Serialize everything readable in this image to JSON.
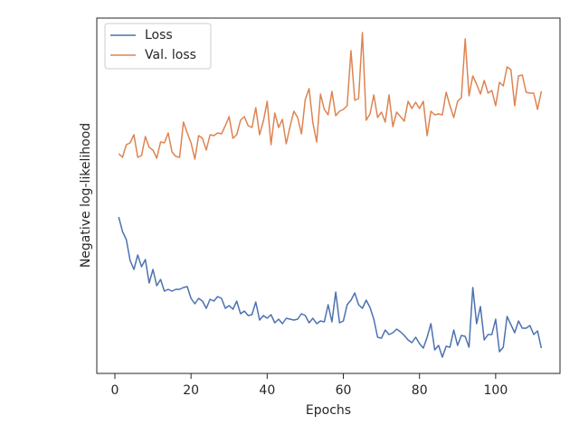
{
  "chart_data": {
    "type": "line",
    "xlabel": "Epochs",
    "ylabel": "Negative log-likelihood",
    "x": [
      1,
      2,
      3,
      4,
      5,
      6,
      7,
      8,
      9,
      10,
      11,
      12,
      13,
      14,
      15,
      16,
      17,
      18,
      19,
      20,
      21,
      22,
      23,
      24,
      25,
      26,
      27,
      28,
      29,
      30,
      31,
      32,
      33,
      34,
      35,
      36,
      37,
      38,
      39,
      40,
      41,
      42,
      43,
      44,
      45,
      46,
      47,
      48,
      49,
      50,
      51,
      52,
      53,
      54,
      55,
      56,
      57,
      58,
      59,
      60,
      61,
      62,
      63,
      64,
      65,
      66,
      67,
      68,
      69,
      70,
      71,
      72,
      73,
      74,
      75,
      76,
      77,
      78,
      79,
      80,
      81,
      82,
      83,
      84,
      85,
      86,
      87,
      88,
      89,
      90,
      91,
      92,
      93,
      94,
      95,
      96,
      97,
      98,
      99,
      100,
      101,
      102,
      103,
      104,
      105,
      106,
      107,
      108,
      109,
      110,
      111,
      112
    ],
    "series": [
      {
        "name": "Loss",
        "color": "#4c72b0",
        "values": [
          173,
          157,
          148,
          125,
          115,
          131,
          118,
          126,
          100,
          115,
          97,
          104,
          91,
          93,
          91,
          93,
          93,
          95,
          96,
          83,
          77,
          83,
          80,
          72,
          82,
          80,
          85,
          83,
          72,
          75,
          71,
          80,
          66,
          69,
          64,
          65,
          79,
          59,
          64,
          61,
          65,
          56,
          60,
          55,
          61,
          60,
          59,
          60,
          66,
          64,
          56,
          61,
          55,
          58,
          57,
          76,
          57,
          90,
          56,
          58,
          76,
          81,
          89,
          76,
          72,
          81,
          73,
          60,
          40,
          39,
          48,
          43,
          45,
          49,
          46,
          42,
          37,
          34,
          40,
          33,
          28,
          40,
          55,
          26,
          31,
          18,
          30,
          29,
          48,
          31,
          42,
          41,
          29,
          95,
          55,
          74,
          37,
          43,
          43,
          60,
          24,
          29,
          63,
          54,
          45,
          58,
          50,
          50,
          53,
          43,
          47,
          28
        ]
      },
      {
        "name": "Val. loss",
        "color": "#dd8452",
        "values": [
          243,
          239,
          253,
          255,
          264,
          239,
          241,
          262,
          250,
          247,
          238,
          256,
          255,
          266,
          245,
          240,
          239,
          278,
          266,
          255,
          237,
          263,
          260,
          247,
          264,
          263,
          266,
          265,
          274,
          284,
          260,
          264,
          280,
          284,
          274,
          272,
          294,
          264,
          279,
          301,
          253,
          288,
          272,
          281,
          254,
          273,
          290,
          283,
          265,
          303,
          315,
          277,
          256,
          309,
          292,
          286,
          312,
          285,
          290,
          292,
          296,
          357,
          302,
          304,
          377,
          280,
          287,
          308,
          283,
          289,
          278,
          308,
          273,
          289,
          284,
          279,
          301,
          293,
          300,
          293,
          301,
          263,
          290,
          286,
          287,
          286,
          311,
          296,
          283,
          301,
          305,
          370,
          307,
          329,
          320,
          309,
          324,
          310,
          313,
          296,
          322,
          318,
          339,
          336,
          296,
          329,
          330,
          311,
          310,
          310,
          292,
          312
        ]
      }
    ],
    "xlim": [
      -4.75,
      116.9
    ],
    "xticks": [
      0,
      20,
      40,
      60,
      80,
      100
    ],
    "ylim": [
      0,
      393
    ],
    "yticks": [],
    "legend": "upper left",
    "grid": false
  }
}
